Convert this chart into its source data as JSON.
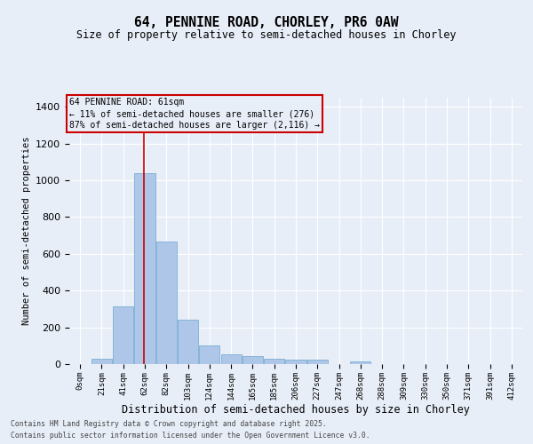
{
  "title1": "64, PENNINE ROAD, CHORLEY, PR6 0AW",
  "title2": "Size of property relative to semi-detached houses in Chorley",
  "xlabel": "Distribution of semi-detached houses by size in Chorley",
  "ylabel": "Number of semi-detached properties",
  "categories": [
    "0sqm",
    "21sqm",
    "41sqm",
    "62sqm",
    "82sqm",
    "103sqm",
    "124sqm",
    "144sqm",
    "165sqm",
    "185sqm",
    "206sqm",
    "227sqm",
    "247sqm",
    "268sqm",
    "288sqm",
    "309sqm",
    "330sqm",
    "350sqm",
    "371sqm",
    "391sqm",
    "412sqm"
  ],
  "values": [
    0,
    30,
    315,
    1040,
    665,
    240,
    100,
    55,
    45,
    30,
    25,
    25,
    0,
    15,
    0,
    0,
    0,
    0,
    0,
    0,
    0
  ],
  "bar_color": "#aec6e8",
  "bar_edge_color": "#7bafd4",
  "bg_color": "#e8eef8",
  "grid_color": "#ffffff",
  "ylim": [
    0,
    1450
  ],
  "yticks": [
    0,
    200,
    400,
    600,
    800,
    1000,
    1200,
    1400
  ],
  "property_label": "64 PENNINE ROAD: 61sqm",
  "pct_smaller": 11,
  "pct_larger": 87,
  "n_smaller": 276,
  "n_larger": 2116,
  "vline_x": 2.95,
  "annotation_box_color": "#cc0000",
  "footer1": "Contains HM Land Registry data © Crown copyright and database right 2025.",
  "footer2": "Contains public sector information licensed under the Open Government Licence v3.0."
}
